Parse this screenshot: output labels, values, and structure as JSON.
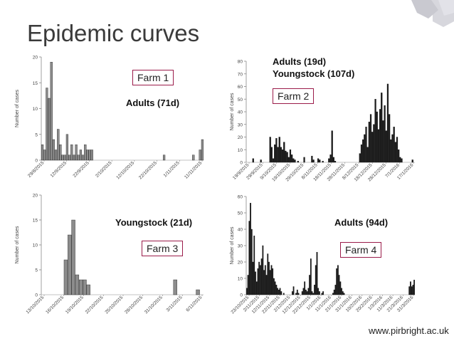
{
  "slide": {
    "title": "Epidemic curves",
    "footer": "www.pirbright.ac.uk",
    "accent_color": "#9b1c4a",
    "logo_color": "#c9c9d0"
  },
  "chart_data": [
    {
      "id": "farm1",
      "type": "bar",
      "farm_label": "Farm 1",
      "annotation": "Adults (71d)",
      "ylabel": "Number of cases",
      "ylim": [
        0,
        20
      ],
      "yticks": [
        0,
        5,
        10,
        15,
        20
      ],
      "xticks": [
        "29/8/2015",
        "12/9/2015",
        "22/9/2015",
        "2/10/2015",
        "12/10/2015",
        "22/10/2015",
        "1/11/2015",
        "11/11/2015"
      ],
      "bar_color": "#8c8c8c",
      "values": [
        3,
        2,
        14,
        12,
        19,
        4,
        2,
        6,
        3,
        1,
        1,
        5,
        1,
        3,
        1,
        3,
        1,
        2,
        1,
        3,
        2,
        2,
        2,
        0,
        0,
        0,
        0,
        0,
        0,
        0,
        0,
        0,
        0,
        0,
        0,
        0,
        0,
        0,
        0,
        0,
        0,
        0,
        0,
        0,
        0,
        0,
        0,
        0,
        0,
        0,
        0,
        0,
        0,
        0,
        1,
        0,
        0,
        0,
        0,
        0,
        0,
        0,
        0,
        0,
        0,
        0,
        0,
        1,
        0,
        0,
        2,
        4
      ]
    },
    {
      "id": "farm2",
      "type": "bar",
      "farm_label": "Farm 2",
      "annotation": "Adults (19d)\nYoungstock (107d)",
      "annotation_lines": [
        "Adults (19d)",
        "Youngstock (107d)"
      ],
      "ylabel": "Number of cases",
      "ylim": [
        0,
        80
      ],
      "yticks": [
        0,
        10,
        20,
        30,
        40,
        50,
        60,
        70,
        80
      ],
      "xticks": [
        "19/9/2015",
        "29/9/2015",
        "9/10/2015",
        "19/10/2015",
        "29/10/2015",
        "8/11/2015",
        "18/11/2015",
        "28/11/2015",
        "8/12/2015",
        "18/12/2015",
        "28/12/2015",
        "7/1/2016",
        "17/1/2016"
      ],
      "bar_color": "#1a1a1a",
      "values": [
        0,
        0,
        0,
        0,
        3,
        0,
        0,
        0,
        0,
        2,
        0,
        0,
        0,
        0,
        0,
        20,
        12,
        3,
        14,
        19,
        12,
        20,
        12,
        10,
        16,
        9,
        8,
        4,
        10,
        6,
        3,
        2,
        0,
        1,
        0,
        0,
        0,
        4,
        0,
        0,
        0,
        0,
        5,
        2,
        0,
        0,
        3,
        2,
        0,
        1,
        0,
        0,
        0,
        3,
        6,
        25,
        4,
        1,
        0,
        0,
        0,
        0,
        0,
        0,
        0,
        0,
        0,
        0,
        0,
        0,
        0,
        0,
        0,
        7,
        14,
        18,
        22,
        28,
        12,
        32,
        38,
        24,
        30,
        50,
        40,
        26,
        42,
        55,
        33,
        45,
        25,
        62,
        38,
        18,
        22,
        28,
        16,
        20,
        10,
        4,
        3,
        0,
        0,
        0,
        0,
        0,
        0,
        2,
        0
      ]
    },
    {
      "id": "farm3",
      "type": "bar",
      "farm_label": "Farm 3",
      "annotation": "Youngstock (21d)",
      "ylabel": "Number of cases",
      "ylim": [
        0,
        20
      ],
      "yticks": [
        0,
        5,
        10,
        15,
        20
      ],
      "xticks": [
        "13/10/2015",
        "16/10/2015",
        "19/10/2015",
        "22/10/2015",
        "25/10/2015",
        "28/10/2015",
        "31/10/2015",
        "3/11/2015",
        "6/11/2015"
      ],
      "bar_color": "#8c8c8c",
      "values": [
        0,
        0,
        0,
        0,
        0,
        0,
        7,
        12,
        15,
        4,
        3,
        3,
        2,
        0,
        0,
        0,
        0,
        0,
        0,
        0,
        0,
        0,
        0,
        0,
        0,
        0,
        0,
        0,
        0,
        0,
        0,
        0,
        0,
        0,
        0,
        3,
        0,
        0,
        0,
        0,
        0,
        1,
        0
      ]
    },
    {
      "id": "farm4",
      "type": "bar",
      "farm_label": "Farm 4",
      "annotation": "Adults (94d)",
      "ylabel": "Number of cases",
      "ylim": [
        0,
        60
      ],
      "yticks": [
        0,
        10,
        20,
        30,
        40,
        50,
        60
      ],
      "xticks": [
        "23/10/2015",
        "2/11/2015",
        "12/11/2015",
        "22/11/2015",
        "2/12/2015",
        "12/12/2015",
        "22/12/2015",
        "1/1/2016",
        "11/1/2016",
        "21/1/2016",
        "31/1/2016",
        "10/2/2016",
        "20/2/2016",
        "1/3/2016",
        "11/3/2016",
        "21/3/2016",
        "31/3/2016"
      ],
      "bar_color": "#1a1a1a",
      "values": [
        4,
        12,
        45,
        56,
        40,
        20,
        36,
        14,
        8,
        16,
        20,
        18,
        22,
        30,
        15,
        18,
        12,
        25,
        20,
        15,
        18,
        16,
        10,
        8,
        6,
        4,
        3,
        4,
        2,
        0,
        1,
        0,
        0,
        0,
        0,
        0,
        0,
        2,
        5,
        0,
        1,
        3,
        1,
        0,
        0,
        2,
        4,
        8,
        3,
        2,
        4,
        12,
        22,
        2,
        1,
        6,
        18,
        26,
        4,
        2,
        0,
        1,
        2,
        0,
        0,
        0,
        0,
        0,
        0,
        0,
        1,
        3,
        6,
        16,
        18,
        12,
        8,
        4,
        2,
        1,
        0,
        0,
        0,
        0,
        0,
        0,
        0,
        0,
        0,
        0,
        0,
        0,
        0,
        0,
        0,
        0,
        0,
        0,
        0,
        0,
        0,
        0,
        0,
        0,
        0,
        0,
        0,
        0,
        0,
        0,
        0,
        0,
        0,
        0,
        0,
        0,
        0,
        0,
        0,
        0,
        0,
        0,
        0,
        0,
        0,
        0,
        0,
        0,
        0,
        0,
        0,
        0,
        5,
        8,
        5,
        6,
        9
      ]
    }
  ]
}
